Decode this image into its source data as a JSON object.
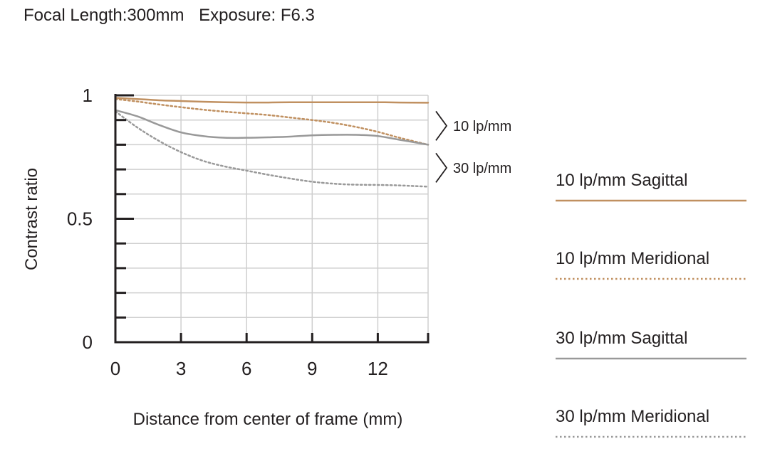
{
  "header": {
    "focal_length": "Focal Length:300mm",
    "exposure": "Exposure: F6.3"
  },
  "chart_data": {
    "type": "line",
    "title": "",
    "xlabel": "Distance from center of frame (mm)",
    "ylabel": "Contrast ratio",
    "xlim": [
      0,
      14.3
    ],
    "ylim": [
      0,
      1
    ],
    "x_ticks": [
      0,
      3,
      6,
      9,
      12
    ],
    "x_tick_labels": [
      "0",
      "3",
      "6",
      "9",
      "12"
    ],
    "y_ticks": [
      0,
      0.1,
      0.2,
      0.3,
      0.4,
      0.5,
      0.6,
      0.7,
      0.8,
      0.9,
      1
    ],
    "y_tick_labels": [
      "0",
      "",
      "",
      "",
      "",
      "0.5",
      "",
      "",
      "",
      "",
      "1"
    ],
    "grid": true,
    "legend_position": "right",
    "series": [
      {
        "name": "10 lp/mm Sagittal",
        "color": "#c09060",
        "style": "solid",
        "x": [
          0,
          1,
          2,
          3,
          4,
          5,
          6,
          7,
          8,
          9,
          10,
          11,
          12,
          13,
          14.3
        ],
        "y": [
          0.99,
          0.985,
          0.98,
          0.977,
          0.974,
          0.972,
          0.971,
          0.971,
          0.972,
          0.972,
          0.972,
          0.972,
          0.972,
          0.971,
          0.97
        ]
      },
      {
        "name": "10 lp/mm Meridional",
        "color": "#c09060",
        "style": "dotted",
        "x": [
          0,
          1,
          2,
          3,
          4,
          5,
          6,
          7,
          8,
          9,
          10,
          11,
          12,
          13,
          14.3
        ],
        "y": [
          0.985,
          0.975,
          0.963,
          0.952,
          0.942,
          0.934,
          0.927,
          0.92,
          0.91,
          0.9,
          0.888,
          0.872,
          0.852,
          0.828,
          0.8
        ]
      },
      {
        "name": "30 lp/mm Sagittal",
        "color": "#999999",
        "style": "solid",
        "x": [
          0,
          1,
          2,
          3,
          4,
          5,
          6,
          7,
          8,
          9,
          10,
          11,
          12,
          13,
          14.3
        ],
        "y": [
          0.94,
          0.915,
          0.88,
          0.85,
          0.835,
          0.828,
          0.828,
          0.83,
          0.833,
          0.838,
          0.84,
          0.84,
          0.835,
          0.82,
          0.8
        ]
      },
      {
        "name": "30 lp/mm Meridional",
        "color": "#999999",
        "style": "dotted",
        "x": [
          0,
          1,
          2,
          3,
          4,
          5,
          6,
          7,
          8,
          9,
          10,
          11,
          12,
          13,
          14.3
        ],
        "y": [
          0.935,
          0.87,
          0.815,
          0.77,
          0.735,
          0.712,
          0.695,
          0.678,
          0.663,
          0.65,
          0.642,
          0.638,
          0.637,
          0.635,
          0.63
        ]
      }
    ],
    "annotations": [
      {
        "text": "10 lp/mm",
        "y_range": [
          0.8,
          0.97
        ]
      },
      {
        "text": "30 lp/mm",
        "y_range": [
          0.63,
          0.8
        ]
      }
    ]
  }
}
